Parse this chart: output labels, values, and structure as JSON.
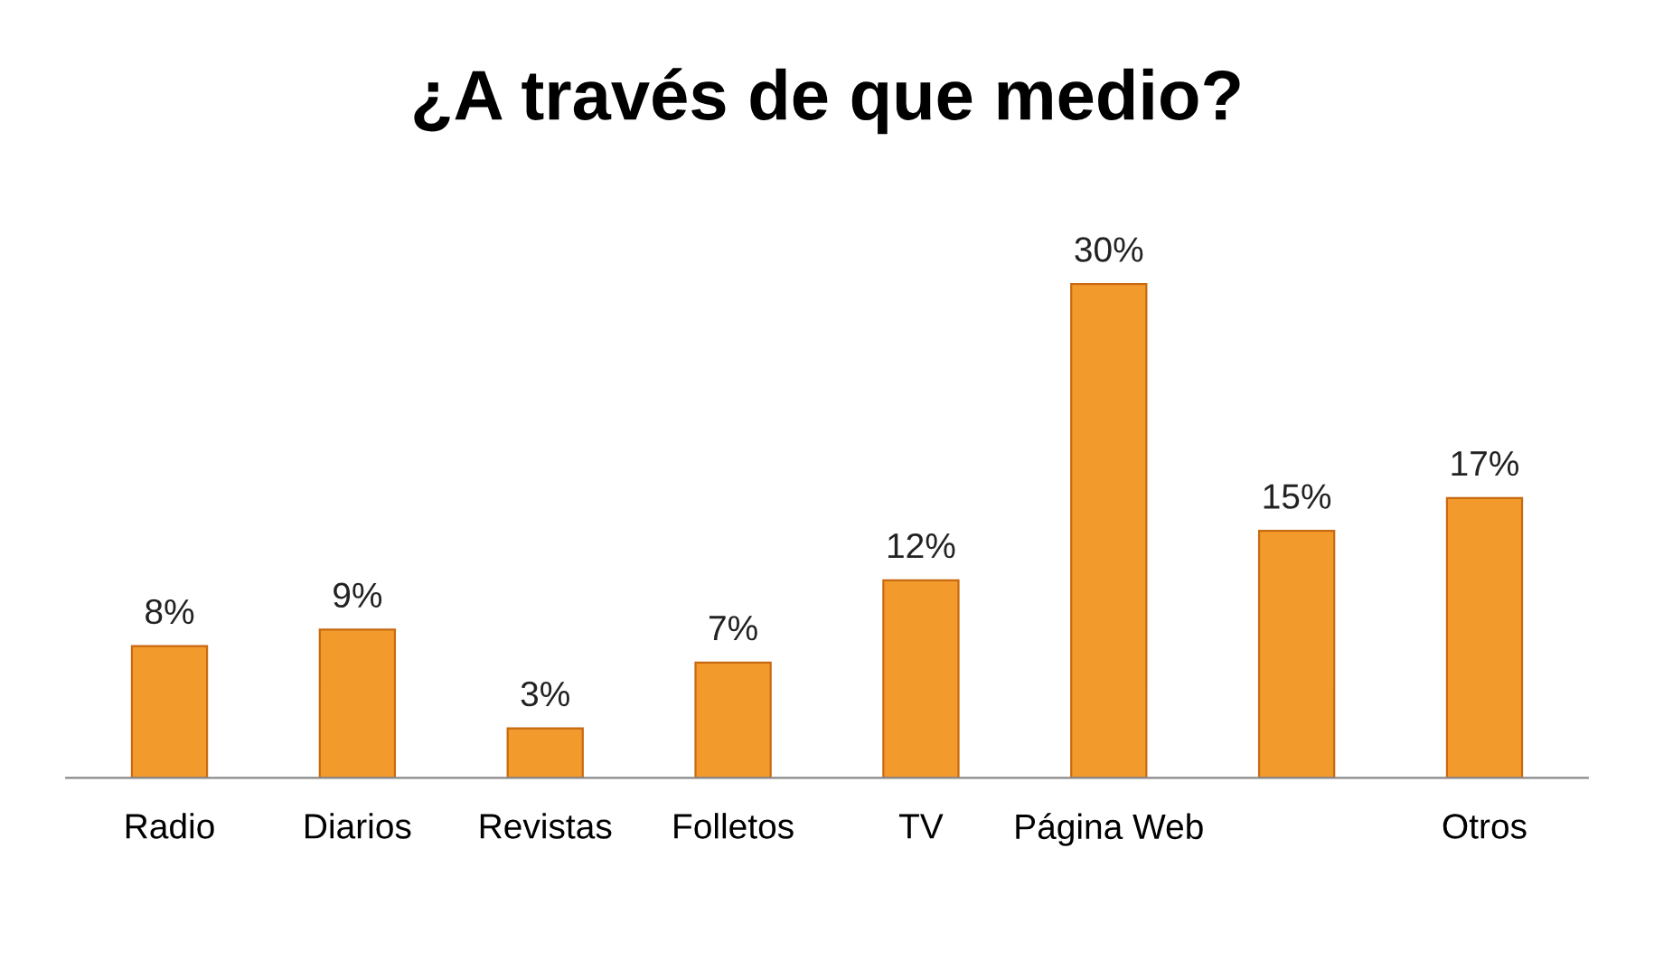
{
  "chart_data": {
    "type": "bar",
    "title": "¿A través de que medio?",
    "categories": [
      "Radio",
      "Diarios",
      "Revistas",
      "Folletos",
      "TV",
      "Página Web",
      null,
      "Otros"
    ],
    "values": [
      8,
      9,
      3,
      7,
      12,
      30,
      15,
      17
    ],
    "value_labels": [
      "8%",
      "9%",
      "3%",
      "7%",
      "12%",
      "30%",
      "15%",
      "17%"
    ],
    "color": "#f39a2c",
    "grid": false,
    "legend": false
  }
}
